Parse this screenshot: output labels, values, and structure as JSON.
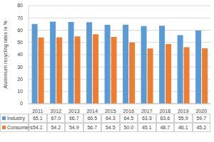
{
  "chart_data": {
    "type": "bar",
    "y_label": "Aluminium recycling rates in %",
    "categories": [
      "2011",
      "2012",
      "2013",
      "2014",
      "2015",
      "2016",
      "2017",
      "2018",
      "2019",
      "2020"
    ],
    "series": [
      {
        "name": "Industry",
        "color": "#5b9bd5",
        "values": [
          65.1,
          67.0,
          66.7,
          66.5,
          64.3,
          64.5,
          63.3,
          63.6,
          55.9,
          59.7
        ],
        "value_labels": [
          "65.1",
          "67.0",
          "66.7",
          "66.5",
          "64.3",
          "64.5",
          "63.3",
          "63.6",
          "55.9",
          "59.7"
        ]
      },
      {
        "name": "Consumers",
        "color": "#ed7d31",
        "values": [
          54.1,
          54.2,
          54.9,
          56.7,
          54.5,
          50.0,
          45.1,
          48.7,
          46.1,
          45.2
        ],
        "value_labels": [
          "54.1",
          "54.2",
          "54.9",
          "56.7",
          "54.5",
          "50.0",
          "45.1",
          "48.7",
          "46.1",
          "45.2"
        ]
      }
    ],
    "ylim": [
      0,
      80
    ],
    "yticks": [
      0,
      10,
      20,
      30,
      40,
      50,
      60,
      70,
      80
    ],
    "grid": true
  }
}
